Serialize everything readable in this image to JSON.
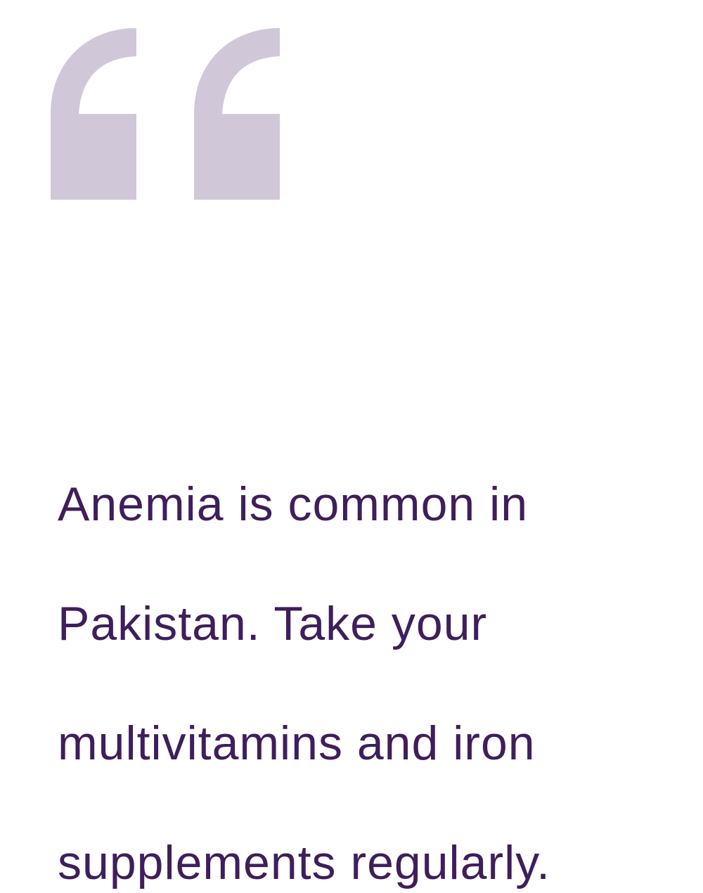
{
  "quote": {
    "text_lines": [
      "Anemia is common in",
      "Pakistan. Take your",
      "multivitamins and iron",
      "supplements regularly."
    ]
  },
  "colors": {
    "quote_mark": "#d0c7d8",
    "text": "#3f1e5c",
    "background": "#ffffff"
  },
  "icons": {
    "quote_mark": "opening-quotation-mark-icon"
  }
}
